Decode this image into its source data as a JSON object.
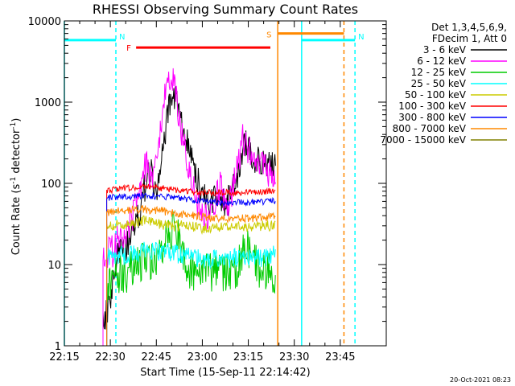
{
  "chart_data": {
    "type": "line",
    "title": "RHESSI Observing Summary Count Rates",
    "xlabel": "Start Time (15-Sep-11 22:14:42)",
    "ylabel_main": "Count Rate (s",
    "ylabel_sup1": "-1",
    "ylabel_mid": " detector",
    "ylabel_sup2": "-1",
    "ylabel_end": ")",
    "yscale": "log",
    "ylim": [
      1,
      10000
    ],
    "xlim_minutes": [
      22.25,
      24.0
    ],
    "x_ticks": [
      {
        "t": 22.25,
        "label": "22:15"
      },
      {
        "t": 22.5,
        "label": "22:30"
      },
      {
        "t": 22.75,
        "label": "22:45"
      },
      {
        "t": 23.0,
        "label": "23:00"
      },
      {
        "t": 23.25,
        "label": "23:15"
      },
      {
        "t": 23.5,
        "label": "23:30"
      },
      {
        "t": 23.75,
        "label": "23:45"
      }
    ],
    "y_ticks": [
      {
        "v": 1,
        "label": "1"
      },
      {
        "v": 10,
        "label": "10"
      },
      {
        "v": 100,
        "label": "100"
      },
      {
        "v": 1000,
        "label": "1000"
      },
      {
        "v": 10000,
        "label": "10000"
      }
    ],
    "legend_header": [
      "Det 1,3,4,5,6,9,",
      "FDecim 1, Att 0"
    ],
    "timestamp": "20-Oct-2021 08:23",
    "flags": [
      {
        "label": "N",
        "color": "#00ffff",
        "start": 22.25,
        "end": 22.53,
        "level": 5800
      },
      {
        "label": "N",
        "color": "#00ffff",
        "start": 23.54,
        "end": 23.83,
        "level": 5800
      },
      {
        "label": "F",
        "color": "#ff0000",
        "start": 22.64,
        "end": 23.37,
        "level": 4700
      },
      {
        "label": "S",
        "color": "#ff8800",
        "start": 23.41,
        "end": 23.77,
        "level": 7000
      }
    ],
    "flag_boundaries": [
      {
        "t": 22.25,
        "color": "#00ffff",
        "dashed": false
      },
      {
        "t": 22.53,
        "color": "#00ffff",
        "dashed": true
      },
      {
        "t": 23.54,
        "color": "#00ffff",
        "dashed": false
      },
      {
        "t": 23.83,
        "color": "#00ffff",
        "dashed": true
      },
      {
        "t": 23.41,
        "color": "#ff8800",
        "dashed": false
      },
      {
        "t": 23.77,
        "color": "#ff8800",
        "dashed": true
      }
    ],
    "series": [
      {
        "name": "3 - 6 keV",
        "color": "#000000",
        "x": [
          22.46,
          22.48,
          22.5,
          22.52,
          22.54,
          22.56,
          22.58,
          22.6,
          22.62,
          22.64,
          22.66,
          22.68,
          22.7,
          22.72,
          22.74,
          22.76,
          22.78,
          22.8,
          22.82,
          22.84,
          22.86,
          22.88,
          22.9,
          22.92,
          22.94,
          22.96,
          22.98,
          23.0,
          23.02,
          23.04,
          23.06,
          23.08,
          23.1,
          23.12,
          23.14,
          23.16,
          23.18,
          23.2,
          23.22,
          23.24,
          23.26,
          23.28,
          23.3,
          23.32,
          23.34,
          23.36,
          23.38,
          23.4
        ],
        "y": [
          2,
          2.5,
          4,
          8,
          13,
          14,
          15,
          20,
          25,
          30,
          45,
          80,
          110,
          150,
          90,
          90,
          200,
          450,
          900,
          1200,
          1000,
          700,
          450,
          300,
          200,
          140,
          100,
          80,
          65,
          55,
          60,
          70,
          65,
          55,
          60,
          90,
          110,
          150,
          280,
          300,
          260,
          200,
          190,
          170,
          170,
          165,
          160,
          150
        ]
      },
      {
        "name": "6 - 12 keV",
        "color": "#ff00ff",
        "x": [
          22.46,
          22.48,
          22.5,
          22.52,
          22.54,
          22.56,
          22.58,
          22.6,
          22.62,
          22.64,
          22.66,
          22.68,
          22.7,
          22.72,
          22.74,
          22.76,
          22.78,
          22.8,
          22.82,
          22.84,
          22.86,
          22.88,
          22.9,
          22.92,
          22.94,
          22.96,
          22.98,
          23.0,
          23.02,
          23.04,
          23.06,
          23.08,
          23.1,
          23.12,
          23.14,
          23.16,
          23.18,
          23.2,
          23.22,
          23.24,
          23.26,
          23.28,
          23.3,
          23.32,
          23.34,
          23.36,
          23.38,
          23.4
        ],
        "y": [
          13,
          14,
          14,
          15,
          20,
          22,
          24,
          30,
          40,
          60,
          90,
          140,
          160,
          110,
          120,
          300,
          700,
          1500,
          2200,
          1800,
          1000,
          550,
          300,
          180,
          110,
          75,
          55,
          48,
          42,
          40,
          50,
          80,
          90,
          60,
          50,
          80,
          110,
          200,
          350,
          300,
          240,
          180,
          170,
          160,
          150,
          140,
          130,
          120
        ]
      },
      {
        "name": "12 - 25 keV",
        "color": "#00cc00",
        "x": [
          22.48,
          22.52,
          22.56,
          22.6,
          22.64,
          22.68,
          22.72,
          22.76,
          22.8,
          22.84,
          22.88,
          22.92,
          22.96,
          23.0,
          23.04,
          23.08,
          23.12,
          23.16,
          23.2,
          23.24,
          23.28,
          23.32,
          23.36,
          23.4
        ],
        "y": [
          6,
          7,
          8,
          8,
          9,
          12,
          11,
          12,
          20,
          28,
          18,
          9,
          8,
          8,
          8,
          8,
          8,
          8,
          10,
          18,
          11,
          8,
          8,
          8
        ]
      },
      {
        "name": "25 - 50 keV",
        "color": "#00ffff",
        "x": [
          22.48,
          22.52,
          22.56,
          22.6,
          22.64,
          22.68,
          22.72,
          22.76,
          22.8,
          22.84,
          22.88,
          22.92,
          22.96,
          23.0,
          23.04,
          23.08,
          23.12,
          23.16,
          23.2,
          23.24,
          23.28,
          23.32,
          23.36,
          23.4
        ],
        "y": [
          12,
          13,
          13,
          13,
          14,
          15,
          15,
          14,
          14,
          14,
          13,
          13,
          12,
          12,
          12,
          12,
          12,
          12,
          12,
          13,
          12,
          12,
          13,
          14
        ]
      },
      {
        "name": "50 - 100 keV",
        "color": "#cccc00",
        "x": [
          22.48,
          22.52,
          22.56,
          22.6,
          22.64,
          22.68,
          22.72,
          22.76,
          22.8,
          22.84,
          22.88,
          22.92,
          22.96,
          23.0,
          23.04,
          23.08,
          23.12,
          23.16,
          23.2,
          23.24,
          23.28,
          23.32,
          23.36,
          23.4
        ],
        "y": [
          30,
          30,
          31,
          32,
          33,
          34,
          33,
          32,
          31,
          30,
          30,
          29,
          29,
          28,
          28,
          28,
          28,
          28,
          29,
          29,
          29,
          30,
          30,
          32
        ]
      },
      {
        "name": "100 - 300 keV",
        "color": "#ff0000",
        "x": [
          22.48,
          22.52,
          22.56,
          22.6,
          22.64,
          22.68,
          22.72,
          22.76,
          22.8,
          22.84,
          22.88,
          22.92,
          22.96,
          23.0,
          23.04,
          23.08,
          23.12,
          23.16,
          23.2,
          23.24,
          23.28,
          23.32,
          23.36,
          23.4
        ],
        "y": [
          82,
          84,
          86,
          88,
          90,
          91,
          90,
          88,
          86,
          84,
          82,
          80,
          78,
          77,
          77,
          77,
          77,
          77,
          77,
          78,
          78,
          79,
          80,
          82
        ]
      },
      {
        "name": "300 - 800 keV",
        "color": "#0000ff",
        "x": [
          22.48,
          22.52,
          22.56,
          22.6,
          22.64,
          22.68,
          22.72,
          22.76,
          22.8,
          22.84,
          22.88,
          22.92,
          22.96,
          23.0,
          23.04,
          23.08,
          23.12,
          23.16,
          23.2,
          23.24,
          23.28,
          23.32,
          23.36,
          23.4
        ],
        "y": [
          66,
          67,
          68,
          69,
          70,
          70,
          70,
          69,
          68,
          66,
          65,
          63,
          62,
          60,
          59,
          58,
          58,
          58,
          58,
          58,
          59,
          59,
          60,
          61
        ]
      },
      {
        "name": "800 - 7000 keV",
        "color": "#ff8800",
        "x": [
          22.48,
          22.52,
          22.56,
          22.6,
          22.64,
          22.68,
          22.72,
          22.76,
          22.8,
          22.84,
          22.88,
          22.92,
          22.96,
          23.0,
          23.04,
          23.08,
          23.12,
          23.16,
          23.2,
          23.24,
          23.28,
          23.32,
          23.36,
          23.4
        ],
        "y": [
          44,
          45,
          46,
          47,
          48,
          48,
          47,
          46,
          45,
          43,
          42,
          41,
          40,
          39,
          38,
          38,
          37,
          37,
          37,
          37,
          37,
          38,
          38,
          39
        ]
      },
      {
        "name": "7000 - 15000 keV",
        "color": "#808000",
        "x": [],
        "y": []
      }
    ]
  }
}
